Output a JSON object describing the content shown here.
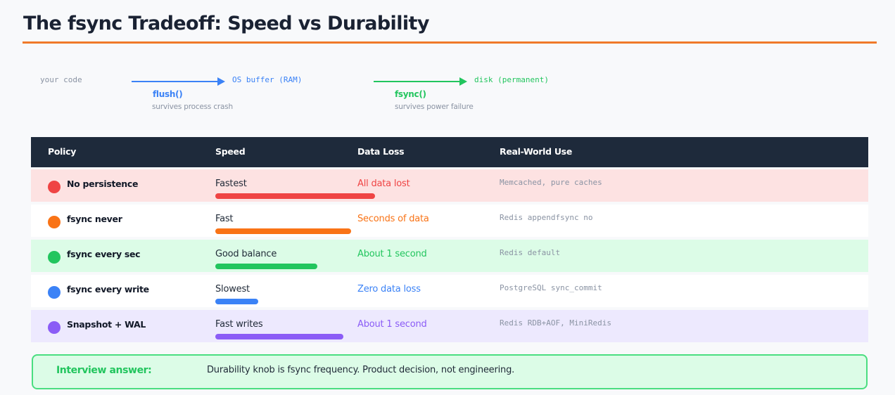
{
  "title": "The fsync Tradeoff: Speed vs Durability",
  "flow": {
    "source": "your code",
    "step1": {
      "target": "OS buffer (RAM)",
      "op": "flush()",
      "note": "survives process crash",
      "color": "#3b82f6"
    },
    "step2": {
      "target": "disk (permanent)",
      "op": "fsync()",
      "note": "survives power failure",
      "color": "#22c55e"
    }
  },
  "table": {
    "headers": [
      "Policy",
      "Speed",
      "Data Loss",
      "Real-World Use"
    ],
    "rows": [
      {
        "policy": "No persistence",
        "speed": "Fastest",
        "speed_level": 1.0,
        "loss": "All data lost",
        "use": "Memcached, pure caches",
        "color": "#ef4444",
        "bg": "#fde2e2"
      },
      {
        "policy": "fsync never",
        "speed": "Fast",
        "speed_level": 0.85,
        "loss": "Seconds of data",
        "use": "Redis appendfsync no",
        "color": "#f97316",
        "bg": "#ffffff"
      },
      {
        "policy": "fsync every sec",
        "speed": "Good balance",
        "speed_level": 0.64,
        "loss": "About 1 second",
        "use": "Redis default",
        "color": "#22c55e",
        "bg": "#dcfce7"
      },
      {
        "policy": "fsync every write",
        "speed": "Slowest",
        "speed_level": 0.27,
        "loss": "Zero data loss",
        "use": "PostgreSQL sync_commit",
        "color": "#3b82f6",
        "bg": "#ffffff"
      },
      {
        "policy": "Snapshot + WAL",
        "speed": "Fast writes",
        "speed_level": 0.8,
        "loss": "About 1 second",
        "use": "Redis RDB+AOF, MiniRedis",
        "color": "#8b5cf6",
        "bg": "#ede9fe"
      }
    ]
  },
  "answer": {
    "label": "Interview answer:",
    "text": "Durability knob is fsync frequency. Product decision, not engineering."
  },
  "colors": {
    "accent": "#f07a2a",
    "header_bg": "#1e2a3b"
  }
}
